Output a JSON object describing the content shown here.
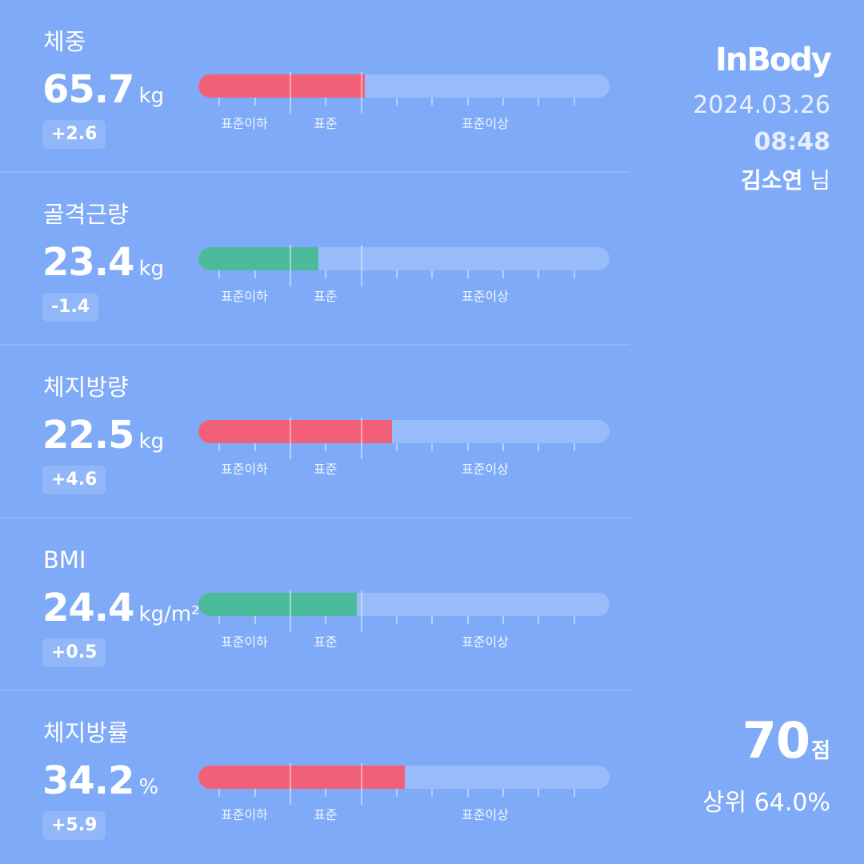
{
  "brand": {
    "logo_text": "InBody"
  },
  "session": {
    "date": "2024.03.26",
    "time": "08:48",
    "user_name": "김소연",
    "user_suffix": "님"
  },
  "score": {
    "value": "70",
    "unit": "점",
    "rank_text": "상위 64.0%"
  },
  "range_labels": {
    "below": "표준이하",
    "standard": "표준",
    "above": "표준이상"
  },
  "status_colors": {
    "over": "#f26078",
    "normal": "#4cbb9b"
  },
  "metrics": [
    {
      "label": "체중",
      "value": "65.7",
      "unit": "kg",
      "delta": "+2.6",
      "status": "over",
      "bar_level_fraction": 0.405
    },
    {
      "label": "골격근량",
      "value": "23.4",
      "unit": "kg",
      "delta": "-1.4",
      "status": "normal",
      "bar_level_fraction": 0.292
    },
    {
      "label": "체지방량",
      "value": "22.5",
      "unit": "kg",
      "delta": "+4.6",
      "status": "over",
      "bar_level_fraction": 0.471
    },
    {
      "label": "BMI",
      "value": "24.4",
      "unit": "kg/m²",
      "delta": "+0.5",
      "status": "normal",
      "bar_level_fraction": 0.385
    },
    {
      "label": "체지방률",
      "value": "34.2",
      "unit": "%",
      "delta": "+5.9",
      "status": "over",
      "bar_level_fraction": 0.502
    }
  ]
}
